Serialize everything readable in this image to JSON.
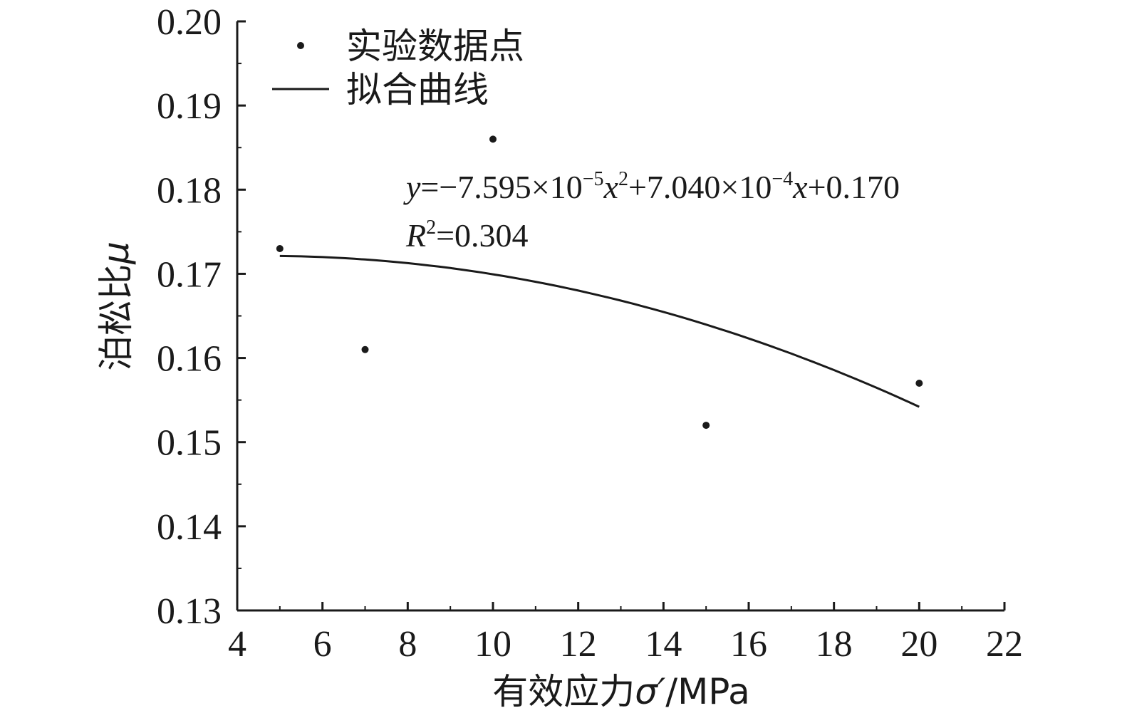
{
  "chart_data": {
    "type": "scatter",
    "xlabel": {
      "main": "有效应力",
      "symbol": "σ′",
      "unit": "/MPa"
    },
    "ylabel": {
      "main": "泊松比",
      "symbol": "μ"
    },
    "xlim": [
      4,
      22
    ],
    "ylim": [
      0.13,
      0.2
    ],
    "xticks": [
      "4",
      "6",
      "8",
      "10",
      "12",
      "14",
      "16",
      "18",
      "20",
      "22"
    ],
    "yticks": [
      "0.13",
      "0.14",
      "0.15",
      "0.16",
      "0.17",
      "0.18",
      "0.19",
      "0.20"
    ],
    "series": [
      {
        "name": "实验数据点",
        "type": "scatter",
        "x": [
          5,
          7,
          10,
          15,
          20
        ],
        "y": [
          0.173,
          0.161,
          0.186,
          0.152,
          0.157
        ]
      },
      {
        "name": "拟合曲线",
        "type": "line",
        "x_range": [
          5,
          20
        ],
        "coefficients": {
          "a": -7.595e-05,
          "b": 0.000704,
          "c": 0.1705
        }
      }
    ],
    "legend_position": "top-left",
    "grid": false,
    "annotation": {
      "eq_y": "y",
      "eq_1": "=−7.595×10",
      "eq_exp1": "−5",
      "eq_x1": "x",
      "eq_pow": "2",
      "eq_2": "+7.040×10",
      "eq_exp2": "−4",
      "eq_x2": "x",
      "eq_3": "+0.170",
      "r_sym": "R",
      "r_pow": "2",
      "r_val": "=0.304"
    }
  }
}
